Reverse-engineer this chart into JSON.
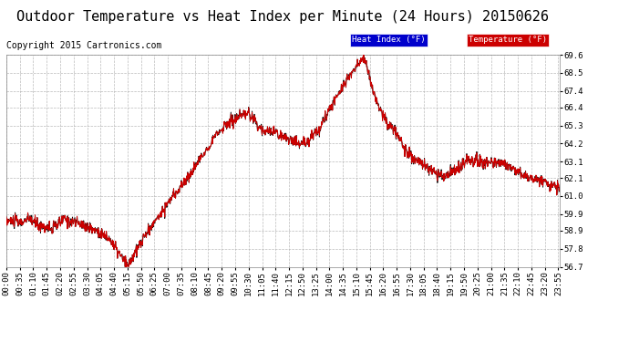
{
  "title": "Outdoor Temperature vs Heat Index per Minute (24 Hours) 20150626",
  "copyright": "Copyright 2015 Cartronics.com",
  "ylim": [
    56.7,
    69.6
  ],
  "yticks": [
    56.7,
    57.8,
    58.9,
    59.9,
    61.0,
    62.1,
    63.1,
    64.2,
    65.3,
    66.4,
    67.4,
    68.5,
    69.6
  ],
  "bg_color": "#ffffff",
  "grid_color": "#aaaaaa",
  "temp_color": "#cc0000",
  "heat_color": "#111111",
  "legend_heat_bg": "#0000cc",
  "legend_temp_bg": "#cc0000",
  "legend_heat_label": "Heat Index (°F)",
  "legend_temp_label": "Temperature (°F)",
  "title_fontsize": 11,
  "copyright_fontsize": 7,
  "tick_fontsize": 6.5,
  "xtick_step": 35,
  "total_minutes": 1440
}
